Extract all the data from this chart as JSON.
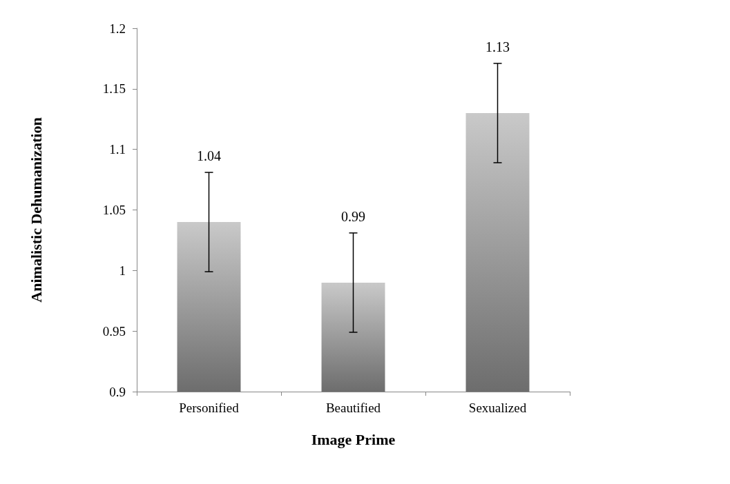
{
  "chart_data": {
    "type": "bar",
    "xlabel": "Image Prime",
    "ylabel": "Animalistic Dehumanization",
    "categories": [
      "Personified",
      "Beautified",
      "Sexualized"
    ],
    "values": [
      1.04,
      0.99,
      1.13
    ],
    "errors": [
      0.041,
      0.041,
      0.041
    ],
    "color": "#9c9c9c",
    "ylim": [
      0.9,
      1.2
    ],
    "yticks": [
      0.9,
      0.95,
      1,
      1.05,
      1.1,
      1.15,
      1.2
    ],
    "annotations": [
      "1.04",
      "0.99",
      "1.13"
    ],
    "grid": false
  }
}
